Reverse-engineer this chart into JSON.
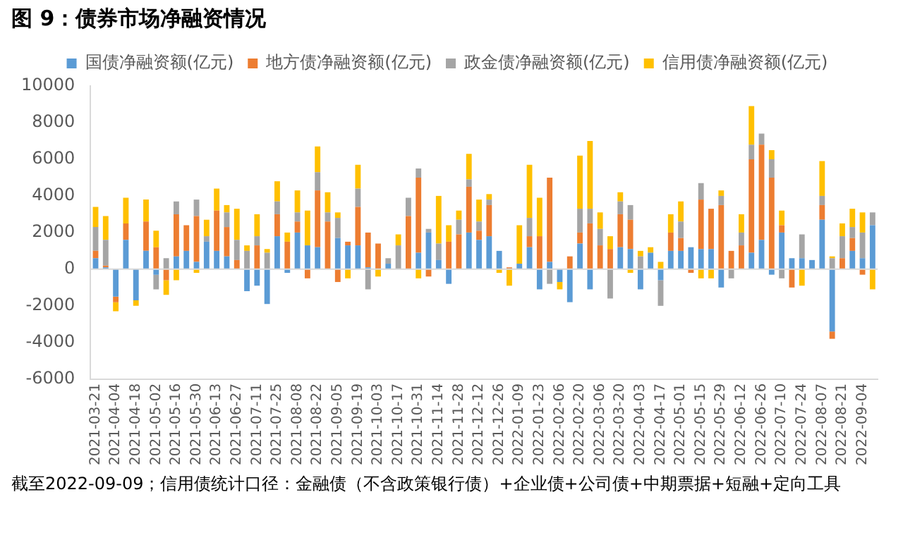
{
  "chart_data": {
    "type": "bar",
    "title": "图 9：债券市场净融资情况",
    "stacked": true,
    "legend": "top",
    "grid": false,
    "categories": [
      "2021-03-21",
      null,
      "2021-04-04",
      null,
      "2021-04-18",
      null,
      "2021-05-02",
      null,
      "2021-05-16",
      null,
      "2021-05-30",
      null,
      "2021-06-13",
      null,
      "2021-06-27",
      null,
      "2021-07-11",
      null,
      "2021-07-25",
      null,
      "2021-08-08",
      null,
      "2021-08-22",
      null,
      "2021-09-05",
      null,
      "2021-09-19",
      null,
      "2021-10-03",
      null,
      "2021-10-17",
      null,
      "2021-10-31",
      null,
      "2021-11-14",
      null,
      "2021-11-28",
      null,
      "2021-12-12",
      null,
      "2021-12-26",
      null,
      "2022-01-09",
      null,
      "2022-01-23",
      null,
      "2022-02-06",
      null,
      "2022-02-20",
      null,
      "2022-03-06",
      null,
      "2022-03-20",
      null,
      "2022-04-03",
      null,
      "2022-04-17",
      null,
      "2022-05-01",
      null,
      "2022-05-15",
      null,
      "2022-05-29",
      null,
      "2022-06-12",
      null,
      "2022-06-26",
      null,
      "2022-07-10",
      null,
      "2022-07-24",
      null,
      "2022-08-07",
      null,
      "2022-08-21",
      null,
      "2022-09-04",
      null
    ],
    "series": [
      {
        "name": "国债净融资额(亿元)",
        "color": "#5b9bd5",
        "values": [
          600,
          100,
          -1500,
          1600,
          -1700,
          1000,
          -300,
          0,
          700,
          1000,
          400,
          1500,
          1000,
          700,
          0,
          -1200,
          -900,
          -1900,
          1800,
          -200,
          2000,
          1300,
          1200,
          0,
          1700,
          1300,
          1300,
          100,
          0,
          300,
          0,
          0,
          900,
          2000,
          500,
          -800,
          0,
          2000,
          1600,
          1800,
          1000,
          0,
          300,
          1200,
          -1100,
          400,
          -700,
          -1800,
          1400,
          -1100,
          0,
          0,
          1200,
          1100,
          -1100,
          900,
          -600,
          1000,
          1000,
          1200,
          1100,
          1100,
          -1000,
          0,
          0,
          900,
          1600,
          -300,
          2000,
          600,
          600,
          500,
          2700,
          -3400,
          0,
          1000,
          600,
          2400
        ]
      },
      {
        "name": "地方债净融资额(亿元)",
        "color": "#ed7d31",
        "values": [
          400,
          100,
          -300,
          900,
          0,
          1600,
          1200,
          -600,
          2300,
          1400,
          2500,
          0,
          2200,
          1600,
          500,
          0,
          1300,
          0,
          1200,
          1500,
          600,
          -500,
          3100,
          2600,
          -700,
          200,
          2100,
          1900,
          1400,
          0,
          0,
          2900,
          4100,
          -400,
          0,
          1500,
          1900,
          2500,
          500,
          1700,
          0,
          100,
          0,
          600,
          1800,
          4600,
          0,
          700,
          600,
          2500,
          1300,
          1100,
          1800,
          1600,
          0,
          0,
          0,
          1000,
          700,
          -200,
          2700,
          2200,
          3500,
          1000,
          1300,
          5100,
          5200,
          5000,
          400,
          -1000,
          0,
          0,
          800,
          -400,
          600,
          700,
          -300,
          0
        ]
      },
      {
        "name": "政金债净融资额(亿元)",
        "color": "#a5a5a5",
        "values": [
          1300,
          1400,
          0,
          0,
          0,
          0,
          -800,
          600,
          700,
          0,
          900,
          300,
          0,
          800,
          1100,
          1000,
          500,
          900,
          700,
          0,
          500,
          0,
          1000,
          500,
          1100,
          0,
          1000,
          -1100,
          0,
          300,
          1300,
          1000,
          500,
          200,
          900,
          0,
          800,
          400,
          500,
          300,
          0,
          0,
          0,
          1000,
          0,
          -800,
          0,
          0,
          1300,
          800,
          900,
          -1600,
          700,
          800,
          700,
          0,
          -1400,
          0,
          900,
          0,
          900,
          0,
          500,
          -500,
          700,
          800,
          600,
          1000,
          -500,
          0,
          1300,
          0,
          500,
          600,
          1200,
          600,
          1400,
          700
        ]
      },
      {
        "name": "信用债净融资额(亿元)",
        "color": "#ffc000",
        "values": [
          1100,
          1300,
          -500,
          1400,
          -300,
          1200,
          900,
          -800,
          -600,
          0,
          -200,
          900,
          1200,
          400,
          1700,
          300,
          1200,
          200,
          1100,
          500,
          1200,
          1900,
          1400,
          1100,
          300,
          -500,
          1300,
          0,
          -400,
          0,
          600,
          0,
          -500,
          0,
          2600,
          900,
          500,
          1400,
          1200,
          300,
          -200,
          -900,
          2100,
          2900,
          2100,
          0,
          -400,
          0,
          2900,
          3700,
          900,
          700,
          500,
          -200,
          300,
          300,
          400,
          1000,
          1100,
          0,
          -500,
          -500,
          300,
          0,
          1000,
          2100,
          0,
          500,
          800,
          0,
          -900,
          0,
          1900,
          100,
          700,
          1000,
          1100,
          -1100
        ]
      }
    ],
    "ref_lines": [
      {
        "axis": "y",
        "value": 0,
        "color": "#d9d9d9"
      }
    ],
    "ylim": [
      -6000,
      10000
    ],
    "yticks": [
      -6000,
      -4000,
      -2000,
      0,
      2000,
      4000,
      6000,
      8000,
      10000
    ],
    "annotations": [
      "截至2022-09-09；信用债统计口径：金融债（不含政策银行债）+企业债+公司债+中期票据+短融+定向工具"
    ]
  }
}
